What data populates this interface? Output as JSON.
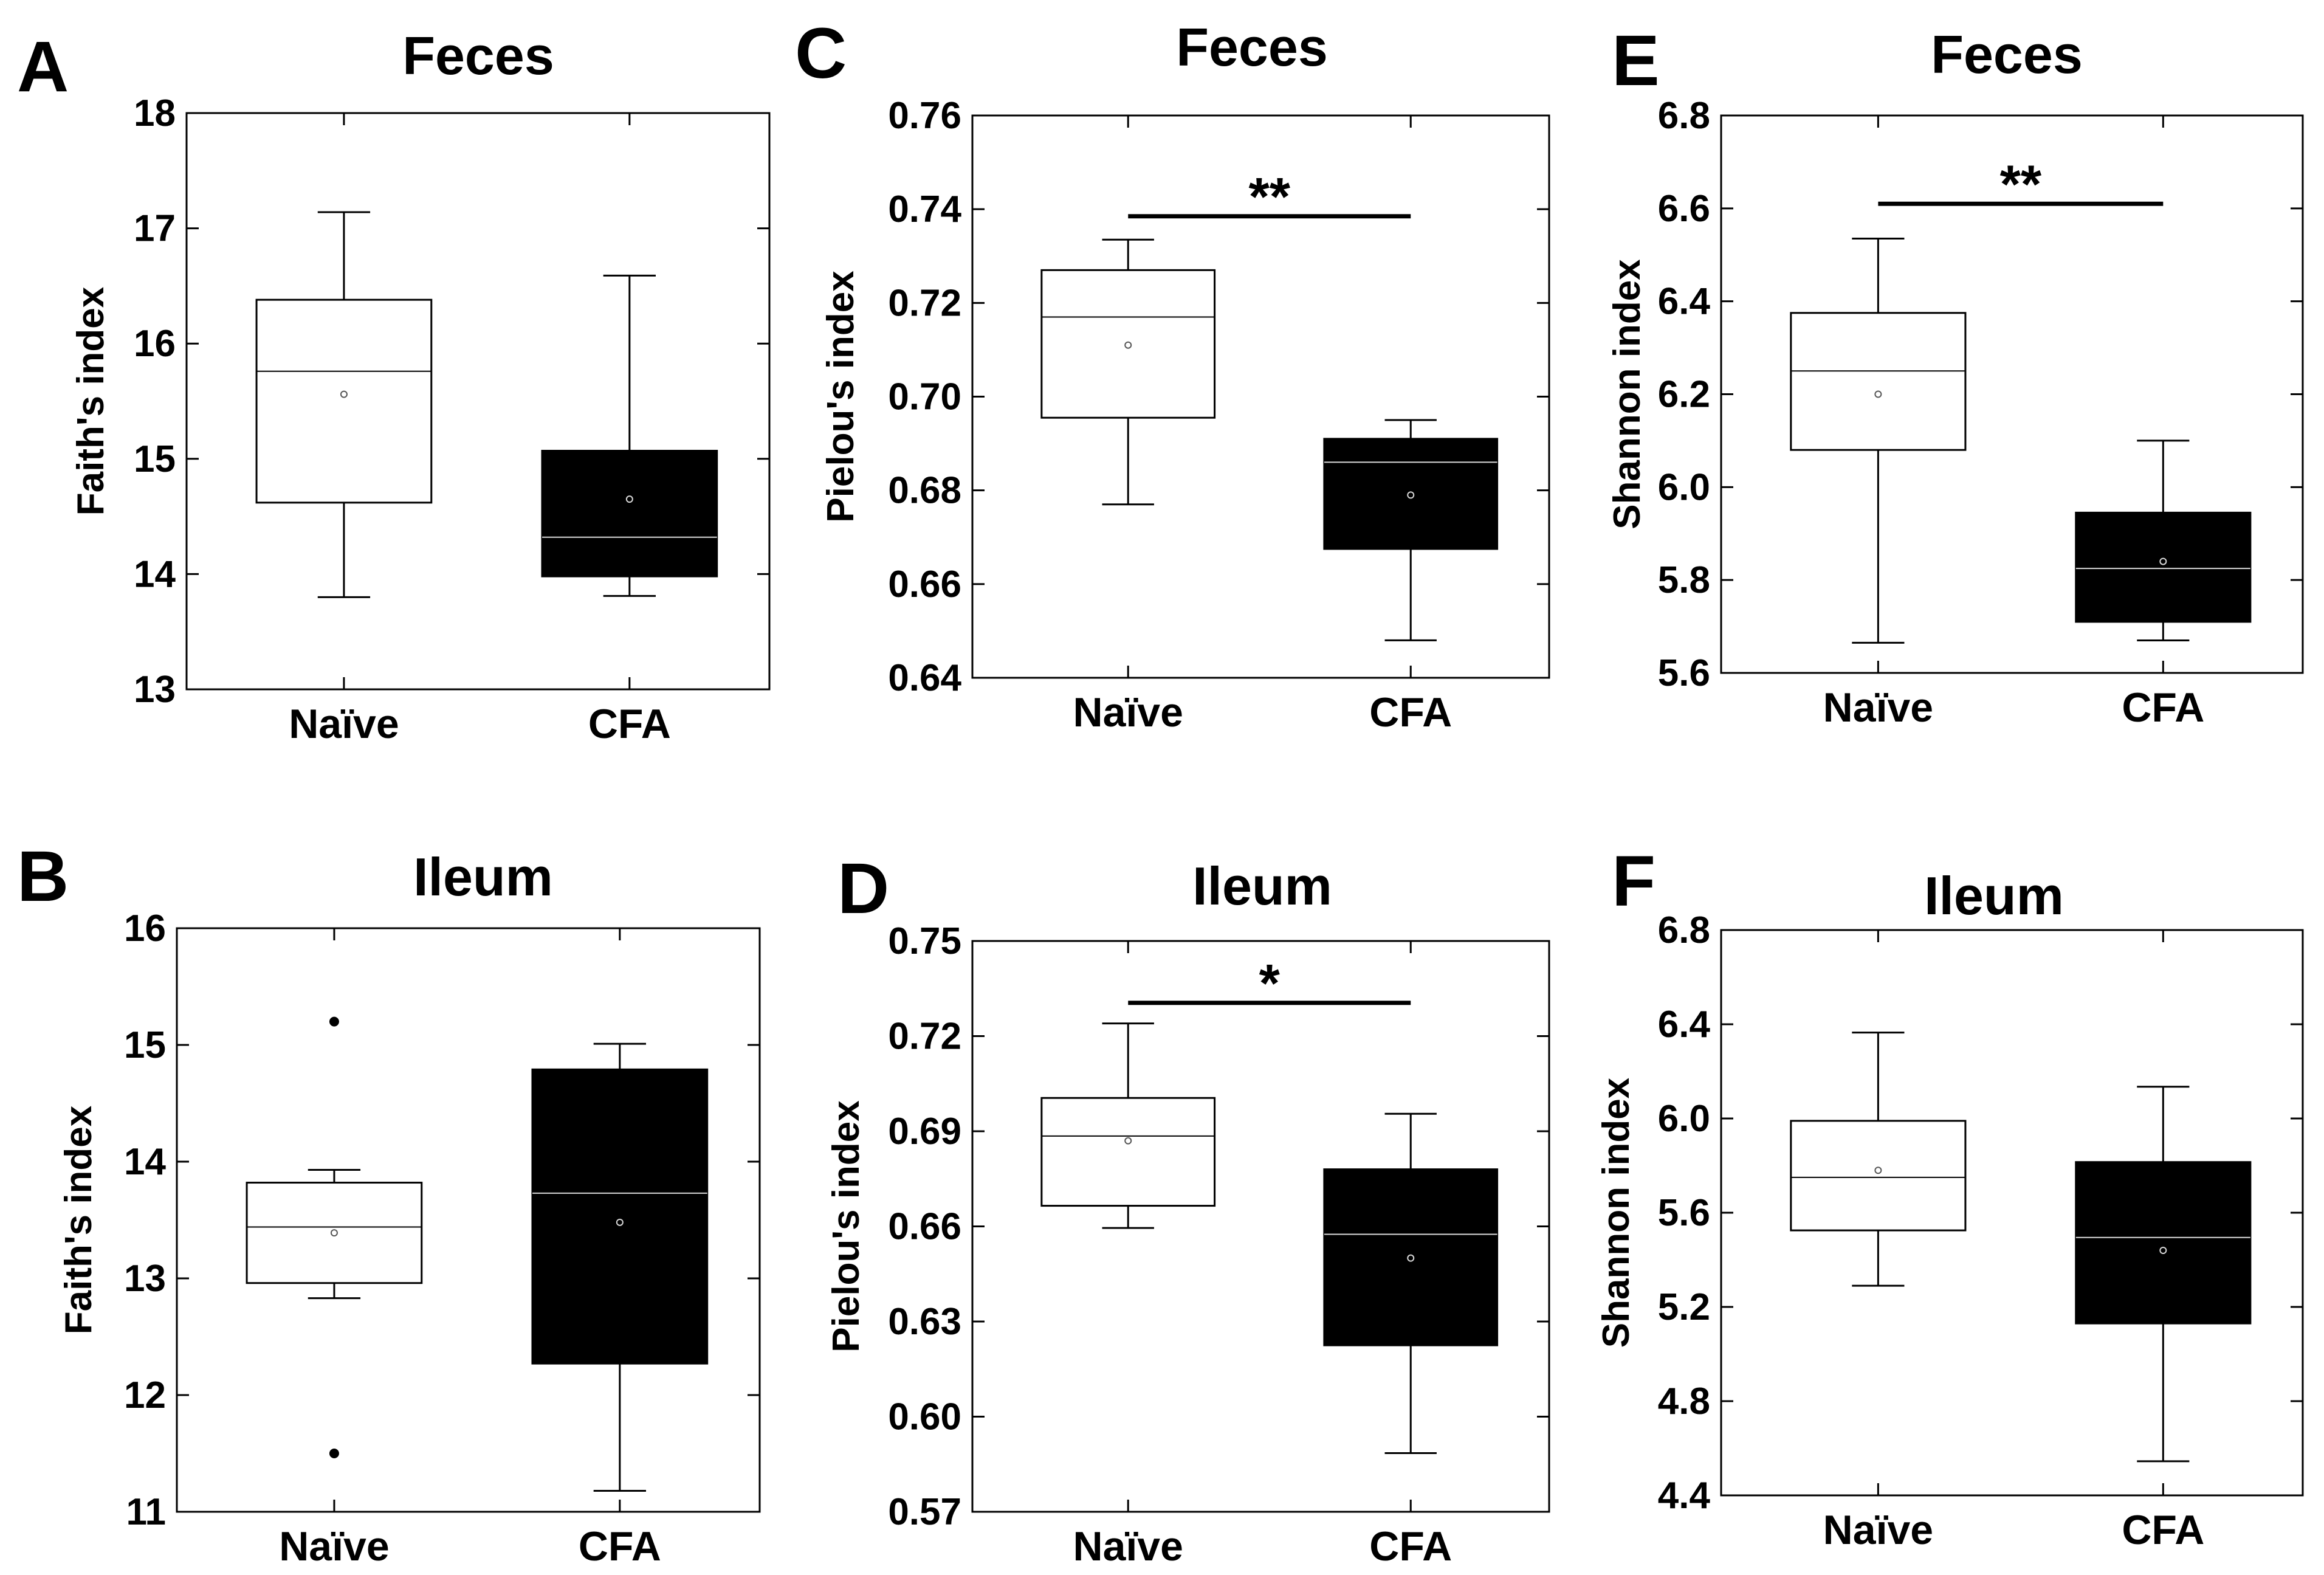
{
  "colors": {
    "naive_fill": "#ffffff",
    "cfa_fill": "#000000",
    "stroke": "#000000",
    "cfa_median": "#d9d9d9"
  },
  "chart_data": [
    {
      "id": "A",
      "panel_label": "A",
      "type": "box",
      "title": "Feces",
      "ylabel": "Faith's index",
      "ylim": [
        13,
        18
      ],
      "yticks": [
        "13",
        "14",
        "15",
        "16",
        "17",
        "18"
      ],
      "categories": [
        "Naïve",
        "CFA"
      ],
      "series": [
        {
          "name": "Naïve",
          "whisker_low": 13.8,
          "q1": 14.62,
          "median": 15.76,
          "q3": 16.38,
          "whisker_high": 17.14,
          "mean": 15.56,
          "outliers": []
        },
        {
          "name": "CFA",
          "whisker_low": 13.81,
          "q1": 13.98,
          "median": 14.32,
          "q3": 15.07,
          "whisker_high": 16.59,
          "mean": 14.65,
          "outliers": []
        }
      ],
      "significance": null
    },
    {
      "id": "B",
      "panel_label": "B",
      "type": "box",
      "title": "Ileum",
      "ylabel": "Faith's index",
      "ylim": [
        11,
        16
      ],
      "yticks": [
        "11",
        "12",
        "13",
        "14",
        "15",
        "16"
      ],
      "categories": [
        "Naïve",
        "CFA"
      ],
      "series": [
        {
          "name": "Naïve",
          "whisker_low": 12.83,
          "q1": 12.96,
          "median": 13.44,
          "q3": 13.82,
          "whisker_high": 13.93,
          "mean": 13.39,
          "outliers": [
            15.2,
            11.5
          ]
        },
        {
          "name": "CFA",
          "whisker_low": 11.18,
          "q1": 12.27,
          "median": 13.73,
          "q3": 14.79,
          "whisker_high": 15.01,
          "mean": 13.48,
          "outliers": []
        }
      ],
      "significance": null
    },
    {
      "id": "C",
      "panel_label": "C",
      "type": "box",
      "title": "Feces",
      "ylabel": "Pielou's index",
      "ylim": [
        0.64,
        0.76
      ],
      "yticks": [
        "0.64",
        "0.66",
        "0.68",
        "0.70",
        "0.72",
        "0.74",
        "0.76"
      ],
      "categories": [
        "Naïve",
        "CFA"
      ],
      "series": [
        {
          "name": "Naïve",
          "whisker_low": 0.677,
          "q1": 0.6955,
          "median": 0.717,
          "q3": 0.727,
          "whisker_high": 0.7335,
          "mean": 0.711,
          "outliers": []
        },
        {
          "name": "CFA",
          "whisker_low": 0.648,
          "q1": 0.6675,
          "median": 0.686,
          "q3": 0.691,
          "whisker_high": 0.695,
          "mean": 0.679,
          "outliers": []
        }
      ],
      "significance": {
        "label": "**",
        "y": 0.7385
      }
    },
    {
      "id": "D",
      "panel_label": "D",
      "type": "box",
      "title": "Ileum",
      "ylabel": "Pielou's index",
      "ylim": [
        0.57,
        0.75
      ],
      "yticks": [
        "0.57",
        "0.60",
        "0.63",
        "0.66",
        "0.69",
        "0.72",
        "0.75"
      ],
      "categories": [
        "Naïve",
        "CFA"
      ],
      "series": [
        {
          "name": "Naïve",
          "whisker_low": 0.6595,
          "q1": 0.6665,
          "median": 0.6885,
          "q3": 0.7005,
          "whisker_high": 0.724,
          "mean": 0.687,
          "outliers": []
        },
        {
          "name": "CFA",
          "whisker_low": 0.5885,
          "q1": 0.6225,
          "median": 0.6575,
          "q3": 0.678,
          "whisker_high": 0.6955,
          "mean": 0.65,
          "outliers": []
        }
      ],
      "significance": {
        "label": "*",
        "y": 0.7305
      }
    },
    {
      "id": "E",
      "panel_label": "E",
      "type": "box",
      "title": "Feces",
      "ylabel": "Shannon index",
      "ylim": [
        5.6,
        6.8
      ],
      "yticks": [
        "5.6",
        "5.8",
        "6.0",
        "6.2",
        "6.4",
        "6.6",
        "6.8"
      ],
      "categories": [
        "Naïve",
        "CFA"
      ],
      "series": [
        {
          "name": "Naïve",
          "whisker_low": 5.665,
          "q1": 6.08,
          "median": 6.25,
          "q3": 6.375,
          "whisker_high": 6.535,
          "mean": 6.2,
          "outliers": []
        },
        {
          "name": "CFA",
          "whisker_low": 5.67,
          "q1": 5.71,
          "median": 5.825,
          "q3": 5.945,
          "whisker_high": 6.1,
          "mean": 5.84,
          "outliers": []
        }
      ],
      "significance": {
        "label": "**",
        "y": 6.61
      }
    },
    {
      "id": "F",
      "panel_label": "F",
      "type": "box",
      "title": "Ileum",
      "ylabel": "Shannon index",
      "ylim": [
        4.4,
        6.8
      ],
      "yticks": [
        "4.4",
        "4.8",
        "5.2",
        "5.6",
        "6.0",
        "6.4",
        "6.8"
      ],
      "categories": [
        "Naïve",
        "CFA"
      ],
      "series": [
        {
          "name": "Naïve",
          "whisker_low": 5.29,
          "q1": 5.525,
          "median": 5.75,
          "q3": 5.99,
          "whisker_high": 6.365,
          "mean": 5.78,
          "outliers": []
        },
        {
          "name": "CFA",
          "whisker_low": 4.545,
          "q1": 5.13,
          "median": 5.495,
          "q3": 5.815,
          "whisker_high": 6.135,
          "mean": 5.44,
          "outliers": []
        }
      ],
      "significance": null
    }
  ]
}
